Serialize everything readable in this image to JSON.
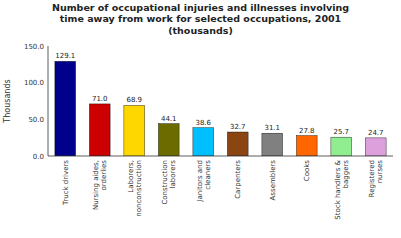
{
  "chart_data": {
    "type": "bar",
    "title": "Number of occupational injuries and illnesses involving\ntime away from work for selected occupations, 2001\n(thousands)",
    "ylabel": "Thousands",
    "categories": [
      "Truck drivers",
      "Nursing aides,\norderlies",
      "Laborers,\nnonconstruction",
      "Construction\nlaborers",
      "Janitors and\ncleaners",
      "Carpenters",
      "Assemblers",
      "Cooks",
      "Stock handlers &\nbaggers",
      "Registered\nnurses"
    ],
    "values": [
      129.1,
      71.0,
      68.9,
      44.1,
      38.6,
      32.7,
      31.1,
      27.8,
      25.7,
      24.7
    ],
    "value_labels": [
      "129.1",
      "71.0",
      "68.9",
      "44.1",
      "38.6",
      "32.7",
      "31.1",
      "27.8",
      "25.7",
      "24.7"
    ],
    "colors": [
      "#00008B",
      "#CC0000",
      "#FFD700",
      "#6B6B00",
      "#00BFFF",
      "#8B4513",
      "#808080",
      "#FF6600",
      "#90EE90",
      "#DDA0DD"
    ],
    "ylim": [
      0,
      150
    ],
    "yticks": [
      {
        "value": 0,
        "label": "0.0"
      },
      {
        "value": 50,
        "label": "50.0"
      },
      {
        "value": 100,
        "label": "100.0"
      },
      {
        "value": 150,
        "label": "150.0"
      }
    ],
    "data_labels": true,
    "grid": false
  }
}
